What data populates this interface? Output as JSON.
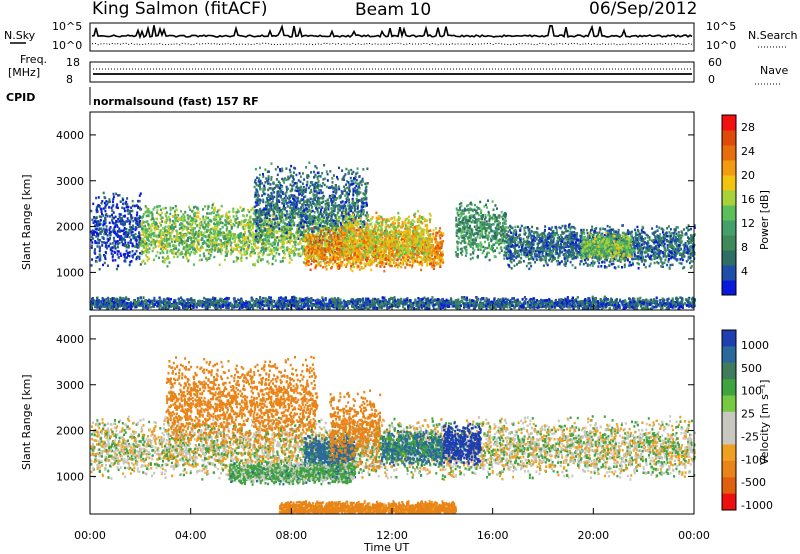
{
  "header": {
    "station": "King Salmon (fitACF)",
    "beam": "Beam 10",
    "date": "06/Sep/2012"
  },
  "top_panels": {
    "nsky_label": "N.Sky",
    "nsearch_label": "N.Search",
    "noise_ticks_left": [
      "10^5",
      "10^0"
    ],
    "noise_ticks_right": [
      "10^5",
      "10^0"
    ],
    "freq_label_1": "Freq.",
    "freq_label_2": "[MHz]",
    "freq_ticks": [
      "18",
      "8"
    ],
    "nave_label": "Nave",
    "nave_ticks": [
      "60",
      "0"
    ],
    "cpid_label": "CPID",
    "cpid_value": "normalsound (fast) 157 RF"
  },
  "colors": {
    "power_scale": [
      "#0a1adb",
      "#1d4fa8",
      "#2f6e64",
      "#3f8a5a",
      "#43a06a",
      "#5bbf5c",
      "#a8d23a",
      "#f1c40f",
      "#f39c12",
      "#e8700a",
      "#e04a0a",
      "#f21010"
    ],
    "velocity_scale": [
      "#1f3fb0",
      "#2a6a9a",
      "#3f7c5e",
      "#3fa33f",
      "#77c842",
      "#c8c8c0",
      "#c8c8c0",
      "#f0a020",
      "#e88418",
      "#e06010",
      "#ee1010"
    ],
    "gray_scatter": "#c8c8c0"
  },
  "chart_data": [
    {
      "type": "heatmap",
      "name_hint": "power-panel",
      "ylabel": "Slant Range [km]",
      "yticks": [
        "1000",
        "2000",
        "3000",
        "4000"
      ],
      "ylim": [
        180,
        4500
      ],
      "x_ticks": [
        "00:00",
        "04:00",
        "08:00",
        "12:00",
        "16:00",
        "20:00",
        "00:00"
      ],
      "xlim_hours": [
        0,
        24
      ],
      "colorbar_label": "Power [dB]",
      "colorbar_ticks": [
        "4",
        "8",
        "12",
        "16",
        "20",
        "24",
        "28"
      ],
      "colorbar_range": [
        0,
        30
      ],
      "bands": [
        {
          "t0": 0.0,
          "t1": 2.0,
          "r_center": 1900,
          "r_width": 900,
          "value": 3
        },
        {
          "t0": 2.0,
          "t1": 10.5,
          "r_center": 1800,
          "r_width": 700,
          "value": 14
        },
        {
          "t0": 6.5,
          "t1": 11.0,
          "r_center": 2500,
          "r_width": 900,
          "value": 6
        },
        {
          "t0": 8.5,
          "t1": 14.0,
          "r_center": 1500,
          "r_width": 500,
          "value": 22
        },
        {
          "t0": 10.0,
          "t1": 13.5,
          "r_center": 1750,
          "r_width": 600,
          "value": 18
        },
        {
          "t0": 14.5,
          "t1": 16.5,
          "r_center": 1900,
          "r_width": 700,
          "value": 10
        },
        {
          "t0": 16.5,
          "t1": 24.0,
          "r_center": 1550,
          "r_width": 500,
          "value": 6
        },
        {
          "t0": 19.5,
          "t1": 21.5,
          "r_center": 1550,
          "r_width": 300,
          "value": 14
        },
        {
          "t0": 0.0,
          "t1": 24.0,
          "r_center": 300,
          "r_width": 150,
          "value": 5
        }
      ]
    },
    {
      "type": "heatmap",
      "name_hint": "velocity-panel",
      "ylabel": "Slant Range [km]",
      "yticks": [
        "1000",
        "2000",
        "3000",
        "4000"
      ],
      "ylim": [
        180,
        4500
      ],
      "x_ticks": [
        "00:00",
        "04:00",
        "08:00",
        "12:00",
        "16:00",
        "20:00",
        "00:00"
      ],
      "xlim_hours": [
        0,
        24
      ],
      "xlabel": "Time UT",
      "colorbar_label": "Velocity [m s⁻¹]",
      "colorbar_ticks": [
        "1000",
        "500",
        "100",
        "25",
        "-25",
        "-100",
        "-500",
        "-1000"
      ],
      "bands": [
        {
          "t0": 0.0,
          "t1": 24.0,
          "r_center": 1600,
          "r_width": 700,
          "value": 0
        },
        {
          "t0": 3.0,
          "t1": 9.0,
          "r_center": 2600,
          "r_width": 1000,
          "value": -200
        },
        {
          "t0": 8.5,
          "t1": 10.5,
          "r_center": 1500,
          "r_width": 400,
          "value": 150
        },
        {
          "t0": 9.5,
          "t1": 11.5,
          "r_center": 2000,
          "r_width": 900,
          "value": -400
        },
        {
          "t0": 11.5,
          "t1": 14.0,
          "r_center": 1600,
          "r_width": 400,
          "value": 120
        },
        {
          "t0": 14.0,
          "t1": 15.5,
          "r_center": 1700,
          "r_width": 500,
          "value": 800
        },
        {
          "t0": 5.5,
          "t1": 10.5,
          "r_center": 1050,
          "r_width": 250,
          "value": 50
        },
        {
          "t0": 7.5,
          "t1": 14.5,
          "r_center": 250,
          "r_width": 200,
          "value": -150
        }
      ]
    }
  ]
}
